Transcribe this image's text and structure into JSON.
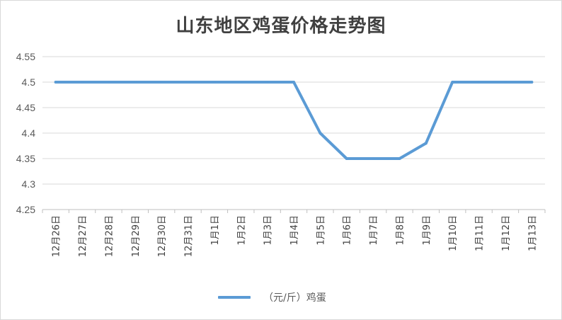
{
  "title": "山东地区鸡蛋价格走势图",
  "colors": {
    "series": "#5b9bd5",
    "grid": "#d9d9d9",
    "axis": "#bfbfbf"
  },
  "legend": {
    "position": "bottom"
  },
  "chart_data": {
    "type": "line",
    "title": "山东地区鸡蛋价格走势图",
    "xlabel": "",
    "ylabel": "",
    "categories": [
      "12月26日",
      "12月27日",
      "12月28日",
      "12月29日",
      "12月30日",
      "12月31日",
      "1月1日",
      "1月2日",
      "1月3日",
      "1月4日",
      "1月5日",
      "1月6日",
      "1月7日",
      "1月8日",
      "1月9日",
      "1月10日",
      "1月11日",
      "1月12日",
      "1月13日"
    ],
    "y_ticks": [
      "4.55",
      "4.5",
      "4.45",
      "4.4",
      "4.35",
      "4.3",
      "4.25"
    ],
    "ylim": [
      4.25,
      4.55
    ],
    "grid": true,
    "legend_position": "bottom",
    "series": [
      {
        "name": "（元/斤）鸡蛋",
        "values": [
          4.5,
          4.5,
          4.5,
          4.5,
          4.5,
          4.5,
          4.5,
          4.5,
          4.5,
          4.5,
          4.4,
          4.35,
          4.35,
          4.35,
          4.38,
          4.5,
          4.5,
          4.5,
          4.5
        ]
      }
    ]
  }
}
